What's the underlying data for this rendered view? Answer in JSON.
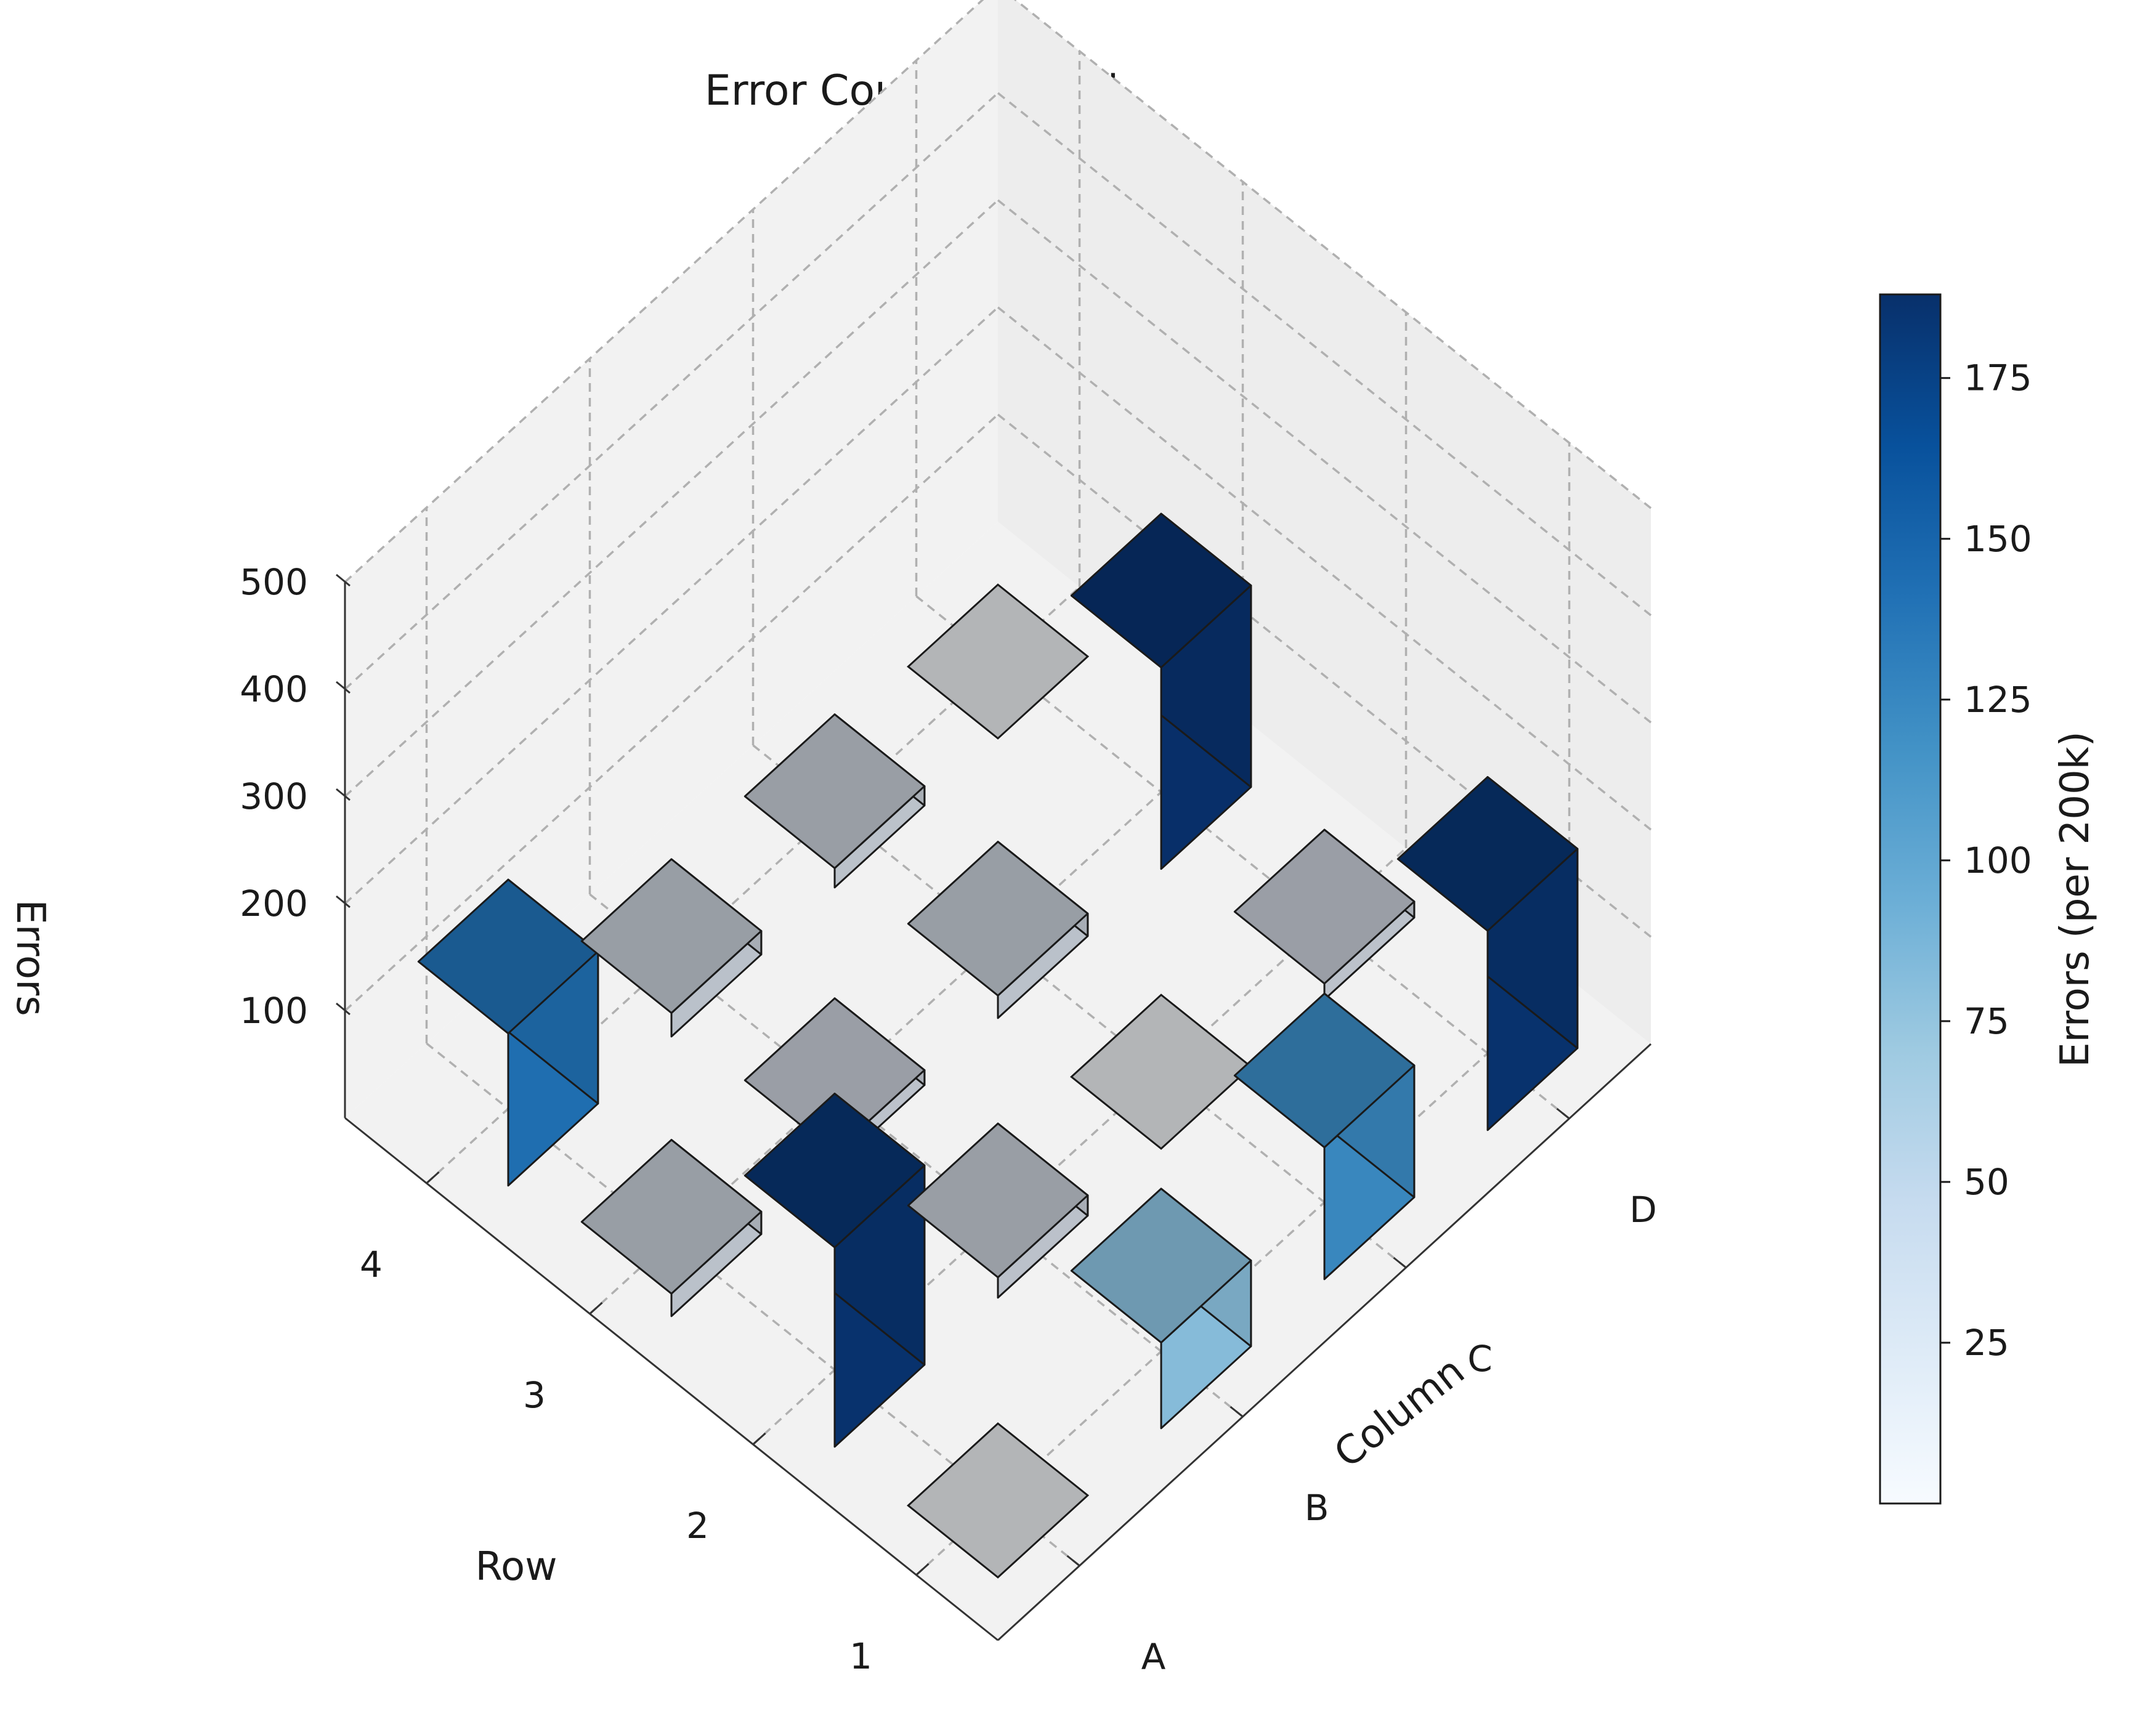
{
  "chart_data": {
    "type": "bar3d",
    "title": "Error Count per Cell",
    "xlabel": "Column",
    "ylabel": "Row",
    "zlabel": "Errors",
    "columns": [
      "A",
      "B",
      "C",
      "D"
    ],
    "rows": [
      "1",
      "2",
      "3",
      "4"
    ],
    "zlim": [
      0,
      500
    ],
    "z_ticks": [
      100,
      200,
      300,
      400,
      500
    ],
    "grid": true,
    "cells": [
      {
        "column": "A",
        "row": "1",
        "value": 0
      },
      {
        "column": "A",
        "row": "2",
        "value": 186
      },
      {
        "column": "A",
        "row": "3",
        "value": 21
      },
      {
        "column": "A",
        "row": "4",
        "value": 142
      },
      {
        "column": "B",
        "row": "1",
        "value": 80
      },
      {
        "column": "B",
        "row": "2",
        "value": 19
      },
      {
        "column": "B",
        "row": "3",
        "value": 14
      },
      {
        "column": "B",
        "row": "4",
        "value": 22
      },
      {
        "column": "C",
        "row": "1",
        "value": 123
      },
      {
        "column": "C",
        "row": "2",
        "value": 0
      },
      {
        "column": "C",
        "row": "3",
        "value": 21
      },
      {
        "column": "C",
        "row": "4",
        "value": 18
      },
      {
        "column": "D",
        "row": "1",
        "value": 186
      },
      {
        "column": "D",
        "row": "2",
        "value": 15
      },
      {
        "column": "D",
        "row": "3",
        "value": 188
      },
      {
        "column": "D",
        "row": "4",
        "value": 0
      }
    ],
    "colorbar": {
      "label": "Errors (per 200k)",
      "min": 0,
      "max": 188,
      "ticks": [
        25,
        50,
        75,
        100,
        125,
        150,
        175
      ],
      "colormap": "Blues",
      "zero_color": "#b3b5b7"
    }
  }
}
